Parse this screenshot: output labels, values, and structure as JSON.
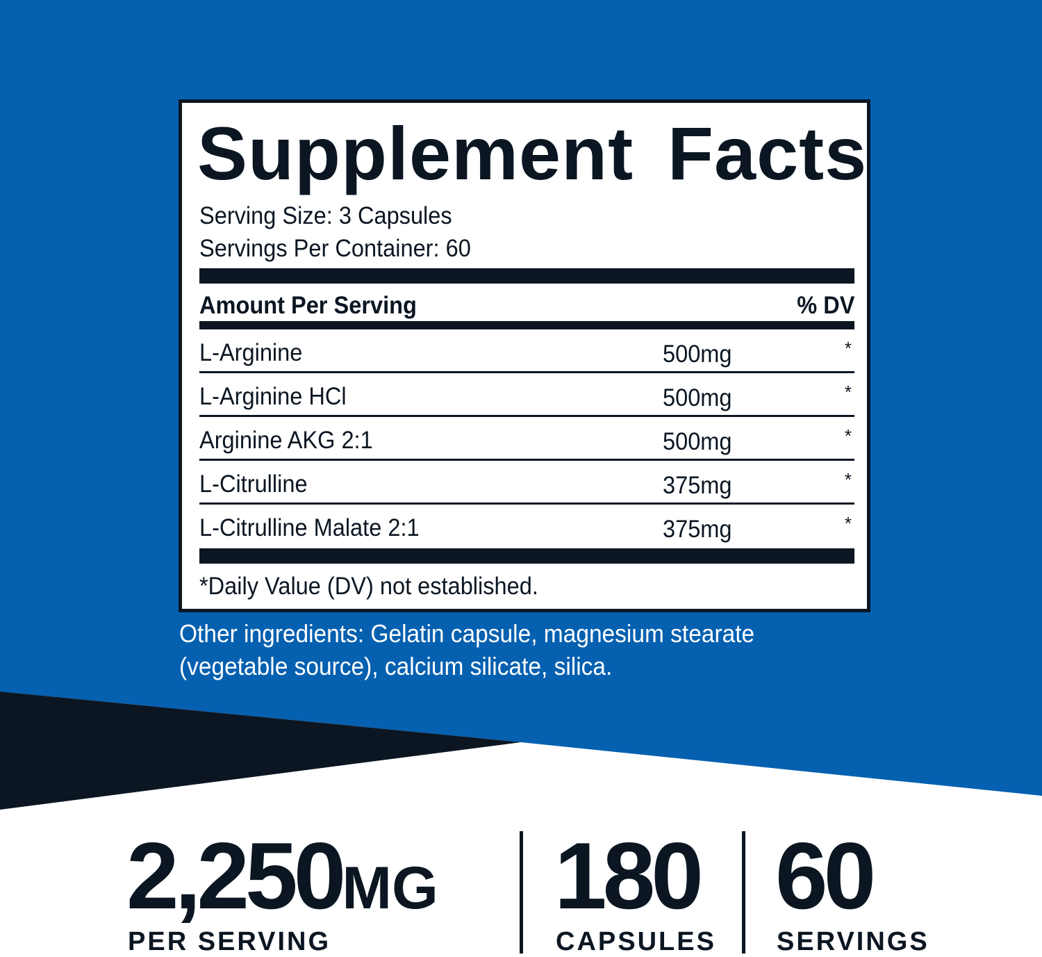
{
  "colors": {
    "background_blue": "#0560b0",
    "navy": "#0b1622",
    "white": "#ffffff"
  },
  "facts": {
    "title": "Supplement Facts",
    "serving_size": "Serving Size: 3 Capsules",
    "servings_per_container": "Servings Per Container: 60",
    "header_amount": "Amount Per Serving",
    "header_dv": "% DV",
    "rows": [
      {
        "name": "L-Arginine",
        "amount": "500mg",
        "dv": "*"
      },
      {
        "name": "L-Arginine HCl",
        "amount": "500mg",
        "dv": "*"
      },
      {
        "name": "Arginine AKG 2:1",
        "amount": "500mg",
        "dv": "*"
      },
      {
        "name": "L-Citrulline",
        "amount": "375mg",
        "dv": "*"
      },
      {
        "name": "L-Citrulline Malate 2:1",
        "amount": "375mg",
        "dv": "*"
      }
    ],
    "footnote": "*Daily Value (DV) not established."
  },
  "other_ingredients": "Other ingredients: Gelatin capsule, magnesium stearate (vegetable source), calcium silicate, silica.",
  "stats": [
    {
      "value": "2,250",
      "unit": "MG",
      "label": "PER SERVING"
    },
    {
      "value": "180",
      "unit": "",
      "label": "CAPSULES"
    },
    {
      "value": "60",
      "unit": "",
      "label": "SERVINGS"
    }
  ]
}
